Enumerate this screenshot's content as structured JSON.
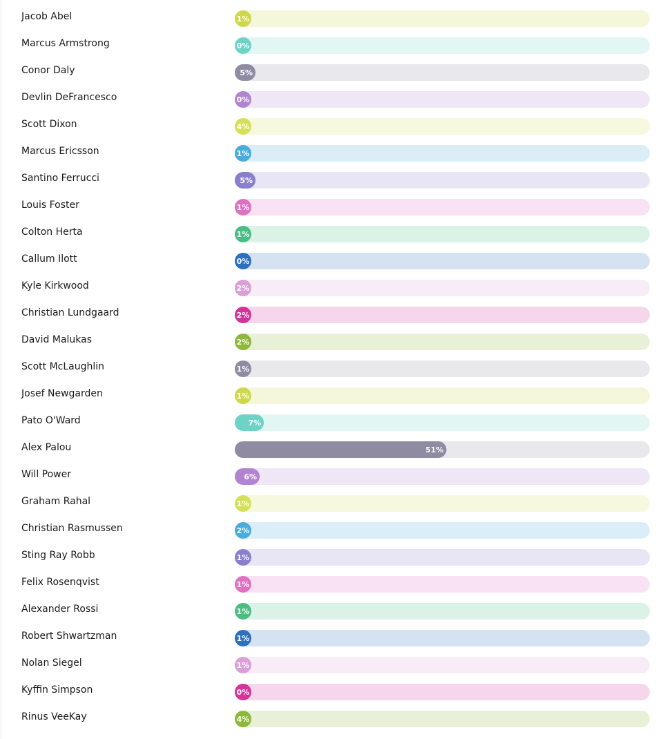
{
  "chart_data": {
    "type": "bar",
    "categories": [
      "Jacob Abel",
      "Marcus Armstrong",
      "Conor Daly",
      "Devlin DeFrancesco",
      "Scott Dixon",
      "Marcus Ericsson",
      "Santino Ferrucci",
      "Louis Foster",
      "Colton Herta",
      "Callum Ilott",
      "Kyle Kirkwood",
      "Christian Lundgaard",
      "David Malukas",
      "Scott McLaughlin",
      "Josef Newgarden",
      "Pato O'Ward",
      "Alex Palou",
      "Will Power",
      "Graham Rahal",
      "Christian Rasmussen",
      "Sting Ray Robb",
      "Felix Rosenqvist",
      "Alexander Rossi",
      "Robert Shwartzman",
      "Nolan Siegel",
      "Kyffin Simpson",
      "Rinus VeeKay"
    ],
    "values": [
      1,
      0,
      5,
      0,
      4,
      1,
      5,
      1,
      1,
      0,
      2,
      2,
      2,
      1,
      1,
      7,
      51,
      6,
      1,
      2,
      1,
      1,
      1,
      1,
      1,
      0,
      4
    ],
    "value_labels": [
      "1%",
      "0%",
      "5%",
      "0%",
      "4%",
      "1%",
      "5%",
      "1%",
      "1%",
      "0%",
      "2%",
      "2%",
      "2%",
      "1%",
      "1%",
      "7%",
      "51%",
      "6%",
      "1%",
      "2%",
      "1%",
      "1%",
      "1%",
      "1%",
      "1%",
      "0%",
      "4%"
    ],
    "colors": [
      "#cdd84a",
      "#6cd3c6",
      "#8e8ba3",
      "#b184d1",
      "#d4e05a",
      "#4aacda",
      "#8a7fcc",
      "#e070c2",
      "#4cbd82",
      "#2f6fc0",
      "#dba0d8",
      "#d4349a",
      "#8db83a",
      "#8e8ba3",
      "#cdd84a",
      "#6cd3c6",
      "#8e8ba3",
      "#b184d1",
      "#d4e05a",
      "#4aacda",
      "#8a7fcc",
      "#e070c2",
      "#4cbd82",
      "#2f6fc0",
      "#dba0d8",
      "#d4349a",
      "#8db83a"
    ],
    "xlim": [
      0,
      100
    ]
  }
}
